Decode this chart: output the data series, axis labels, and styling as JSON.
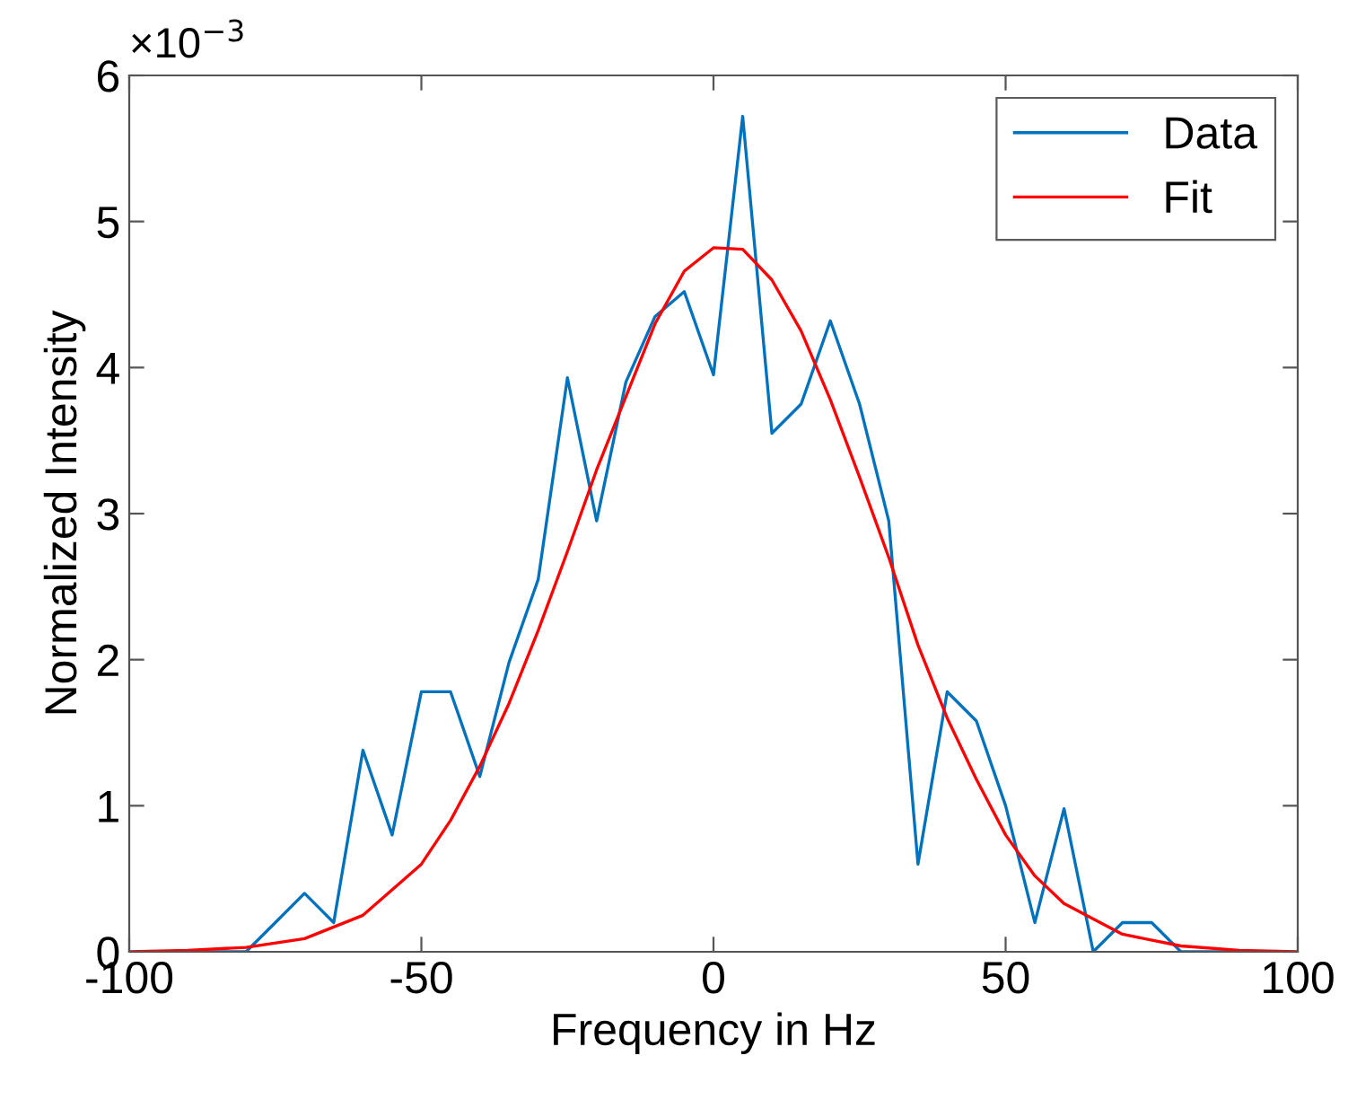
{
  "chart_data": {
    "type": "line",
    "xlabel": "Frequency in Hz",
    "ylabel": "Normalized Intensity",
    "series": [
      {
        "name": "Data",
        "color": "#0072bd",
        "x": [
          -90,
          -85,
          -80,
          -75,
          -70,
          -65,
          -60,
          -55,
          -50,
          -45,
          -40,
          -35,
          -30,
          -25,
          -20,
          -15,
          -10,
          -5,
          0,
          5,
          10,
          15,
          20,
          25,
          30,
          35,
          40,
          45,
          50,
          55,
          60,
          65,
          70,
          75,
          80,
          85,
          90
        ],
        "values": [
          0,
          0,
          0,
          0.2,
          0.4,
          0.2,
          1.38,
          0.8,
          1.78,
          1.78,
          1.2,
          1.98,
          2.55,
          3.93,
          2.95,
          3.9,
          4.35,
          4.52,
          3.95,
          5.72,
          3.55,
          3.75,
          4.32,
          3.75,
          2.95,
          0.6,
          1.78,
          1.58,
          1.0,
          0.2,
          0.98,
          0,
          0.2,
          0.2,
          0,
          0,
          0
        ]
      },
      {
        "name": "Fit",
        "color": "#ff0000",
        "x": [
          -100,
          -90,
          -80,
          -70,
          -60,
          -50,
          -45,
          -40,
          -35,
          -30,
          -25,
          -20,
          -15,
          -10,
          -5,
          0,
          5,
          10,
          15,
          20,
          25,
          30,
          35,
          40,
          45,
          50,
          55,
          60,
          70,
          80,
          90,
          100
        ],
        "values": [
          0,
          0.01,
          0.03,
          0.09,
          0.25,
          0.6,
          0.9,
          1.27,
          1.7,
          2.2,
          2.74,
          3.3,
          3.8,
          4.3,
          4.66,
          4.82,
          4.81,
          4.6,
          4.25,
          3.78,
          3.25,
          2.7,
          2.1,
          1.6,
          1.18,
          0.8,
          0.52,
          0.33,
          0.12,
          0.04,
          0.01,
          0
        ]
      }
    ],
    "xlim": [
      -100,
      100
    ],
    "xticks": [
      -100,
      -50,
      0,
      50,
      100
    ],
    "ylim": [
      0,
      6
    ],
    "yticks": [
      0,
      1,
      2,
      3,
      4,
      5,
      6
    ],
    "annotations": [
      "×10$^{−3}$"
    ],
    "legend": "top right",
    "grid": false,
    "marker": "none",
    "line_style": "solid"
  }
}
